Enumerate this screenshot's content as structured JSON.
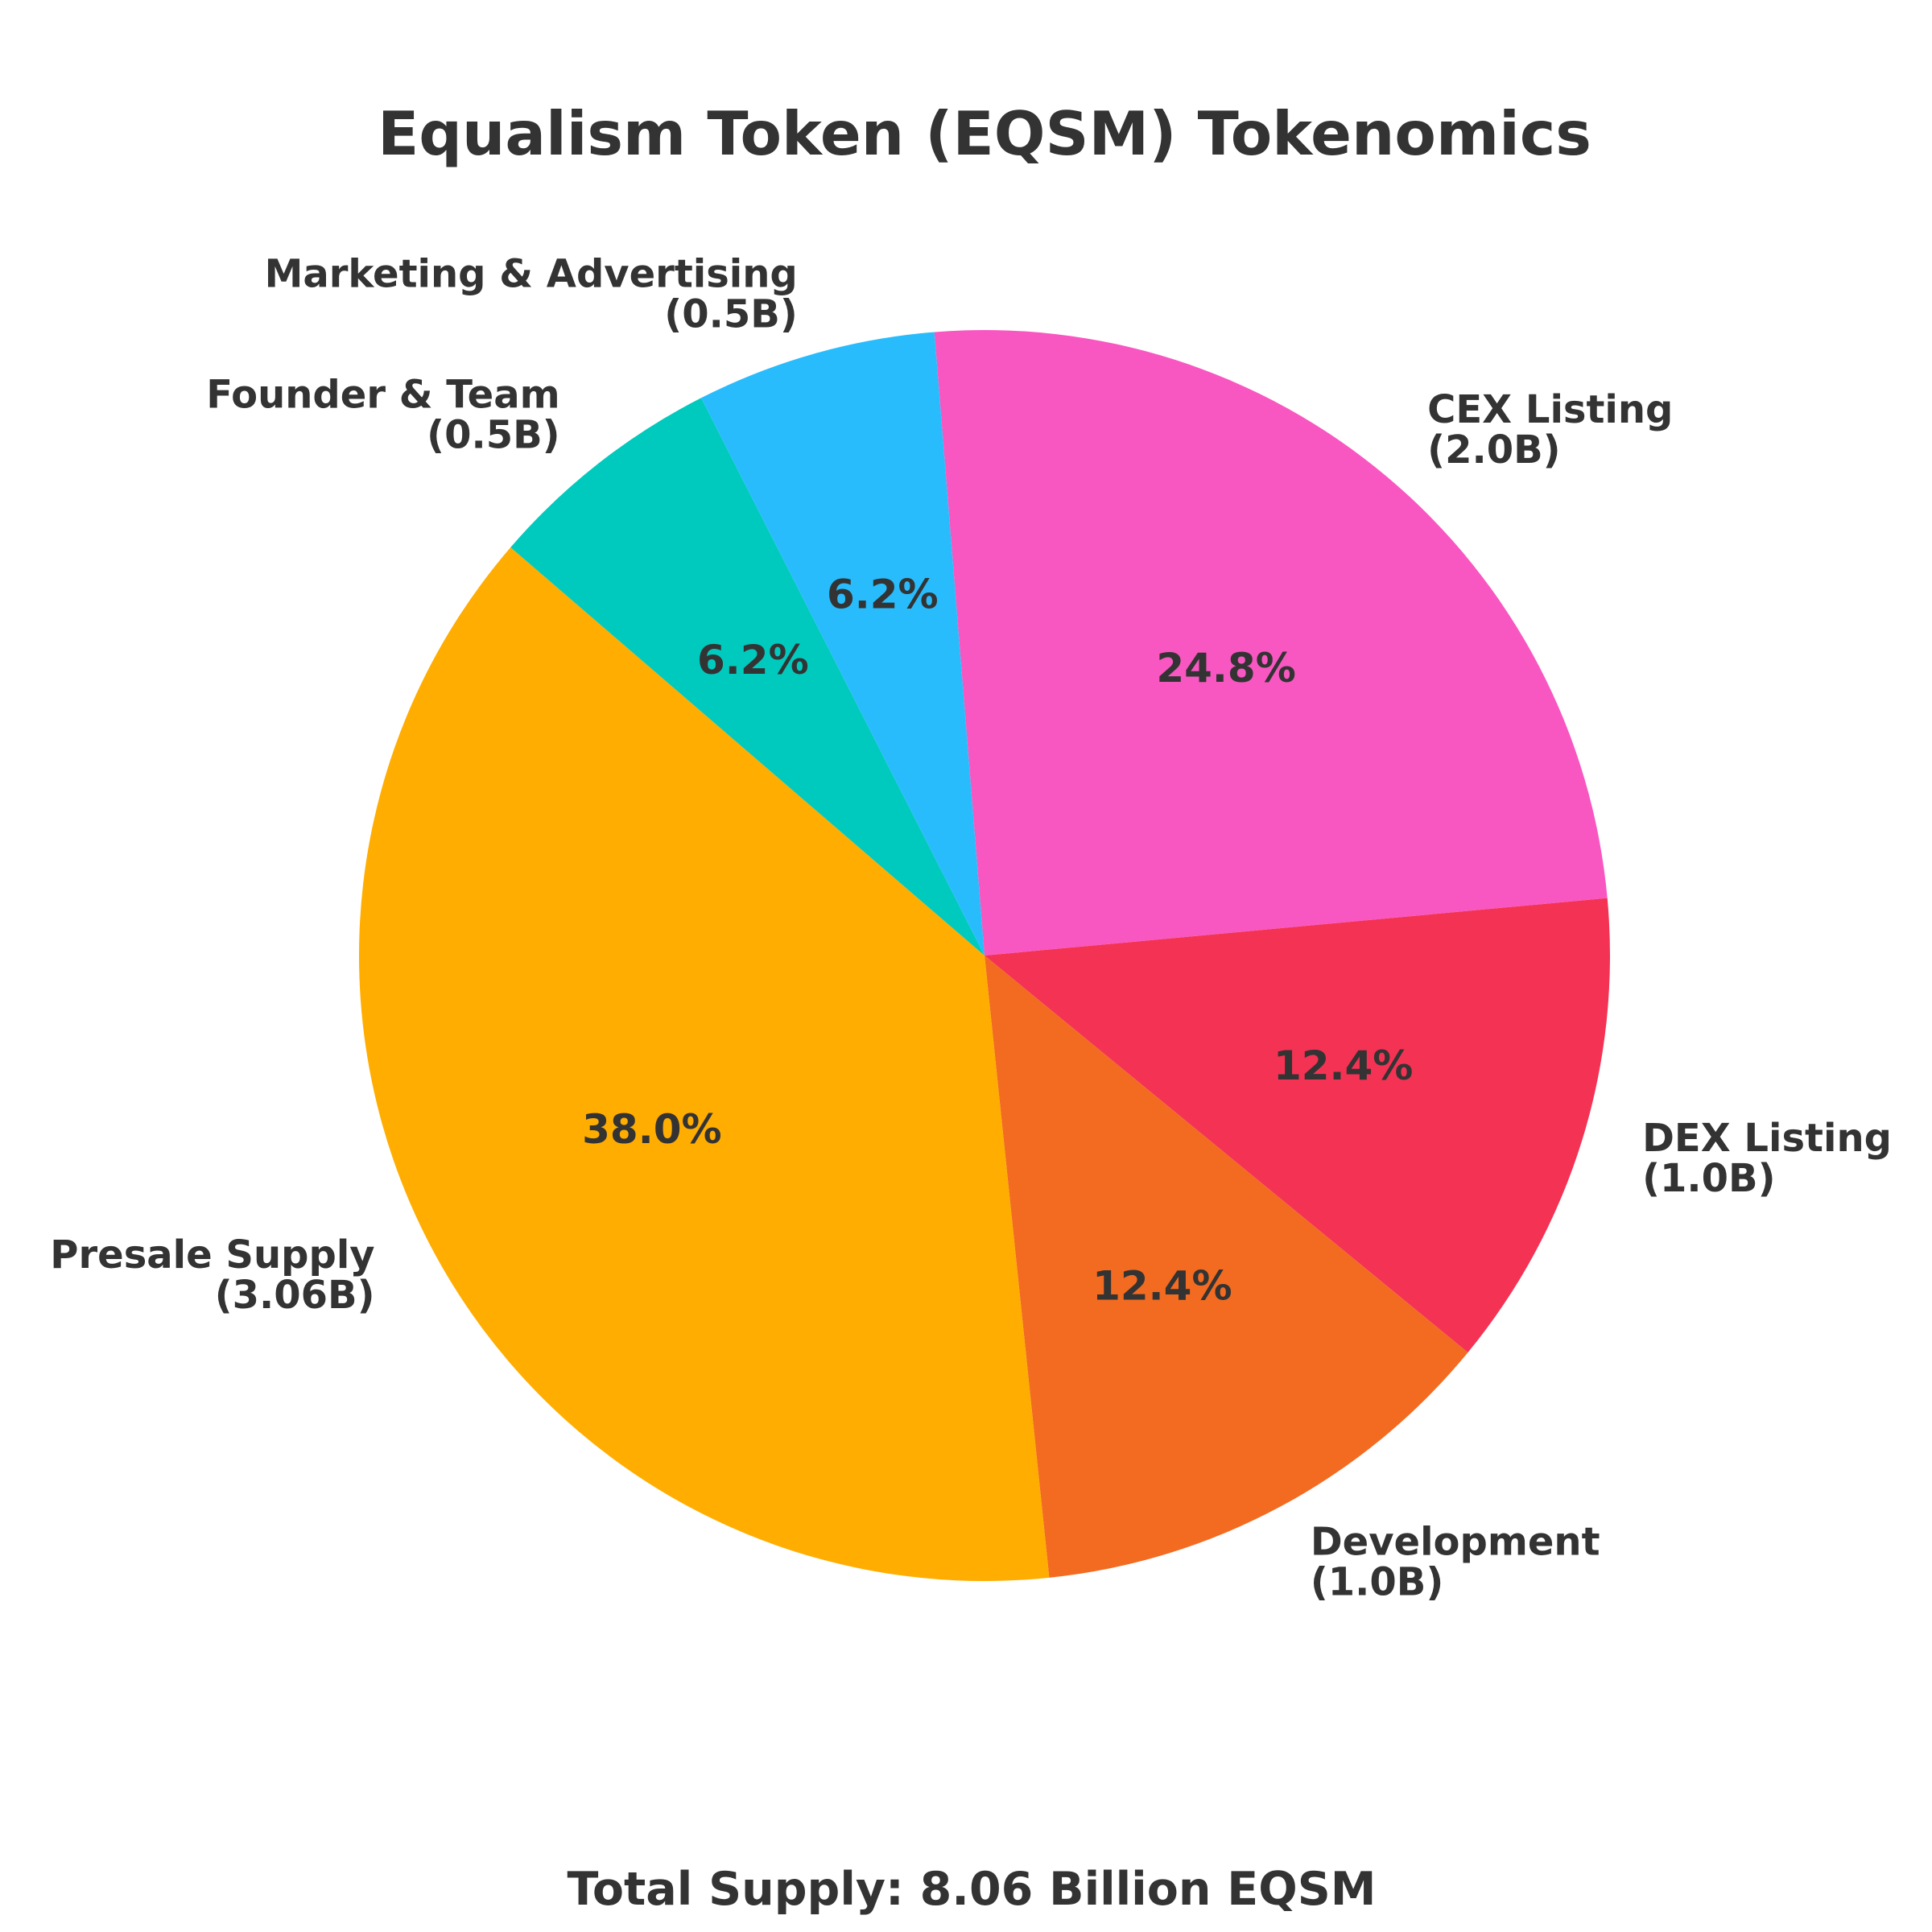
{
  "chart_data": {
    "type": "pie",
    "title": "Equalism Token (EQSM) Tokenomics",
    "footer": "Total Supply: 8.06 Billion EQSM",
    "slices": [
      {
        "name": "CEX Listing",
        "amount": "(2.0B)",
        "value": 2.0,
        "percent_label": "24.8%",
        "color": "#F857C1"
      },
      {
        "name": "DEX Listing",
        "amount": "(1.0B)",
        "value": 1.0,
        "percent_label": "12.4%",
        "color": "#F43254"
      },
      {
        "name": "Development",
        "amount": "(1.0B)",
        "value": 1.0,
        "percent_label": "12.4%",
        "color": "#F26B21"
      },
      {
        "name": "Presale Supply",
        "amount": "(3.06B)",
        "value": 3.06,
        "percent_label": "38.0%",
        "color": "#FFAD00"
      },
      {
        "name": "Founder & Team",
        "amount": "(0.5B)",
        "value": 0.5,
        "percent_label": "6.2%",
        "color": "#00CABE"
      },
      {
        "name": "Marketing & Advertising",
        "amount": "(0.5B)",
        "value": 0.5,
        "percent_label": "6.2%",
        "color": "#29BCFC"
      }
    ]
  }
}
